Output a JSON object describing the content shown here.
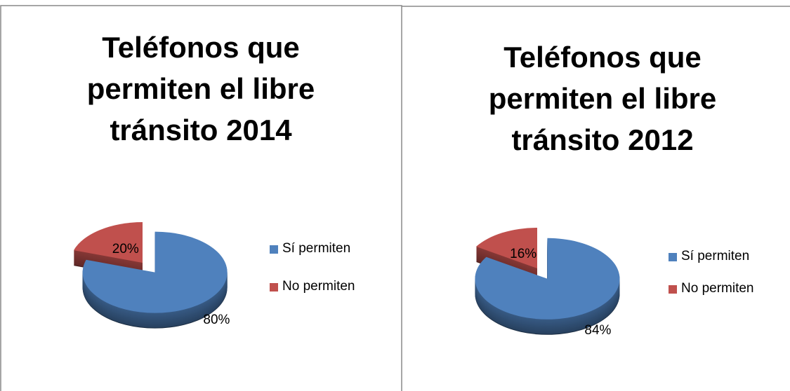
{
  "chart_data": [
    {
      "type": "pie",
      "title": "Teléfonos que permiten el libre tránsito 2014",
      "categories": [
        "Sí permiten",
        "No permiten"
      ],
      "values": [
        80,
        20
      ],
      "value_labels": [
        "80%",
        "20%"
      ],
      "colors": [
        "#4f81bd",
        "#c0504d"
      ],
      "legend": "right"
    },
    {
      "type": "pie",
      "title": "Teléfonos que permiten el libre tránsito 2012",
      "categories": [
        "Sí permiten",
        "No permiten"
      ],
      "values": [
        84,
        16
      ],
      "value_labels": [
        "84%",
        "16%"
      ],
      "colors": [
        "#4f81bd",
        "#c0504d"
      ],
      "legend": "right"
    }
  ]
}
